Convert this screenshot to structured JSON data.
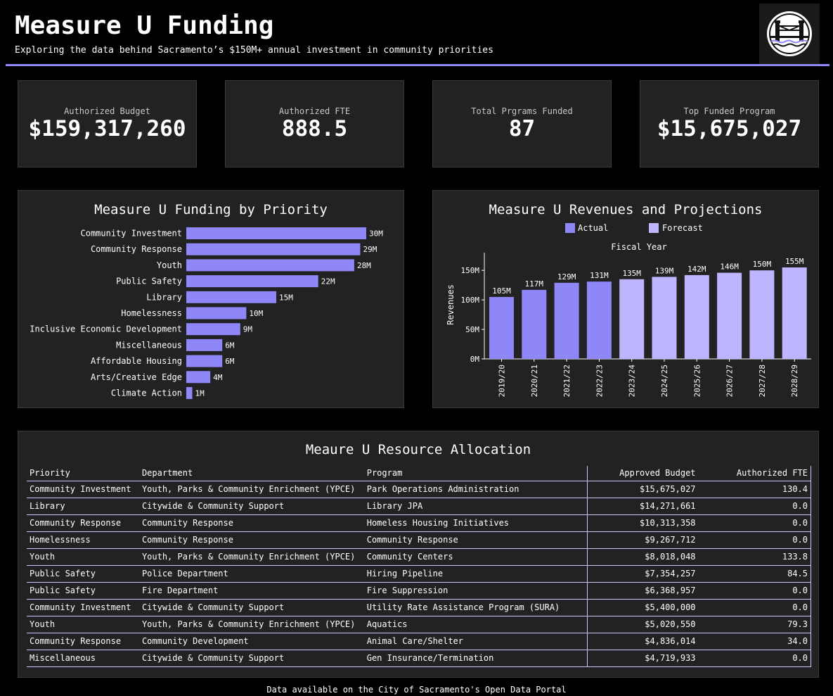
{
  "header": {
    "title": "Measure U Funding",
    "subtitle": "Exploring the data behind Sacramento’s $150M+ annual investment in community priorities",
    "logo_icon": "tower-bridge-icon"
  },
  "kpis": [
    {
      "label": "Authorized Budget",
      "value": "$159,317,260"
    },
    {
      "label": "Authorized FTE",
      "value": "888.5"
    },
    {
      "label": "Total Prgrams Funded",
      "value": "87"
    },
    {
      "label": "Top Funded Program",
      "value": "$15,675,027"
    }
  ],
  "colors": {
    "accent": "#8f86f7",
    "actual": "#8f86f7",
    "forecast": "#bdb6ff",
    "card_bg": "#222222",
    "page_bg": "#000000"
  },
  "priority_chart": {
    "title": "Measure U Funding by Priority"
  },
  "revenue_chart": {
    "title": "Measure U Revenues and Projections",
    "legend_actual": "Actual",
    "legend_forecast": "Forecast",
    "x_axis_title": "Fiscal Year",
    "y_axis_title": "Revenues"
  },
  "chart_data": [
    {
      "type": "bar",
      "orientation": "horizontal",
      "title": "Measure U Funding by Priority",
      "categories": [
        "Community Investment",
        "Community Response",
        "Youth",
        "Public Safety",
        "Library",
        "Homelessness",
        "Inclusive Economic Development",
        "Miscellaneous",
        "Affordable Housing",
        "Arts/Creative Edge",
        "Climate Action"
      ],
      "values": [
        30,
        29,
        28,
        22,
        15,
        10,
        9,
        6,
        6,
        4,
        1
      ],
      "labels": [
        "30M",
        "29M",
        "28M",
        "22M",
        "15M",
        "10M",
        "9M",
        "6M",
        "6M",
        "4M",
        "1M"
      ],
      "unit": "M",
      "xlim": [
        0,
        30
      ]
    },
    {
      "type": "bar",
      "title": "Measure U Revenues and Projections",
      "xlabel": "Fiscal Year",
      "ylabel": "Revenues",
      "categories": [
        "2019/20",
        "2020/21",
        "2021/22",
        "2022/23",
        "2023/24",
        "2024/25",
        "2025/26",
        "2026/27",
        "2027/28",
        "2028/29"
      ],
      "values": [
        105,
        117,
        129,
        131,
        135,
        139,
        142,
        146,
        150,
        155
      ],
      "labels": [
        "105M",
        "117M",
        "129M",
        "131M",
        "135M",
        "139M",
        "142M",
        "146M",
        "150M",
        "155M"
      ],
      "kind": [
        "Actual",
        "Actual",
        "Actual",
        "Actual",
        "Forecast",
        "Forecast",
        "Forecast",
        "Forecast",
        "Forecast",
        "Forecast"
      ],
      "yticks": [
        0,
        50,
        100,
        150
      ],
      "ytick_labels": [
        "0M",
        "50M",
        "100M",
        "150M"
      ],
      "ylim": [
        0,
        155
      ],
      "legend": [
        "Actual",
        "Forecast"
      ],
      "legend_position": "top"
    }
  ],
  "table": {
    "title": "Meaure U Resource Allocation",
    "columns": [
      "Priority",
      "Department",
      "Program",
      "Approved Budget",
      "Authorized FTE"
    ],
    "rows": [
      [
        "Community Investment",
        "Youth, Parks & Community Enrichment (YPCE)",
        "Park Operations Administration",
        "$15,675,027",
        "130.4"
      ],
      [
        "Library",
        "Citywide & Community Support",
        "Library JPA",
        "$14,271,661",
        "0.0"
      ],
      [
        "Community Response",
        "Community Response",
        "Homeless Housing Initiatives",
        "$10,313,358",
        "0.0"
      ],
      [
        "Homelessness",
        "Community Response",
        "Community Response",
        "$9,267,712",
        "0.0"
      ],
      [
        "Youth",
        "Youth, Parks & Community Enrichment (YPCE)",
        "Community Centers",
        "$8,018,048",
        "133.8"
      ],
      [
        "Public Safety",
        "Police Department",
        "Hiring Pipeline",
        "$7,354,257",
        "84.5"
      ],
      [
        "Public Safety",
        "Fire Department",
        "Fire Suppression",
        "$6,368,957",
        "0.0"
      ],
      [
        "Community Investment",
        "Citywide & Community Support",
        "Utility Rate Assistance Program (SURA)",
        "$5,400,000",
        "0.0"
      ],
      [
        "Youth",
        "Youth, Parks & Community Enrichment (YPCE)",
        "Aquatics",
        "$5,020,550",
        "79.3"
      ],
      [
        "Community Response",
        "Community Development",
        "Animal Care/Shelter",
        "$4,836,014",
        "34.0"
      ],
      [
        "Miscellaneous",
        "Citywide & Community Support",
        "Gen Insurance/Termination",
        "$4,719,933",
        "0.0"
      ]
    ]
  },
  "footer": {
    "text": "Data available on the City of Sacramento's Open Data Portal"
  }
}
